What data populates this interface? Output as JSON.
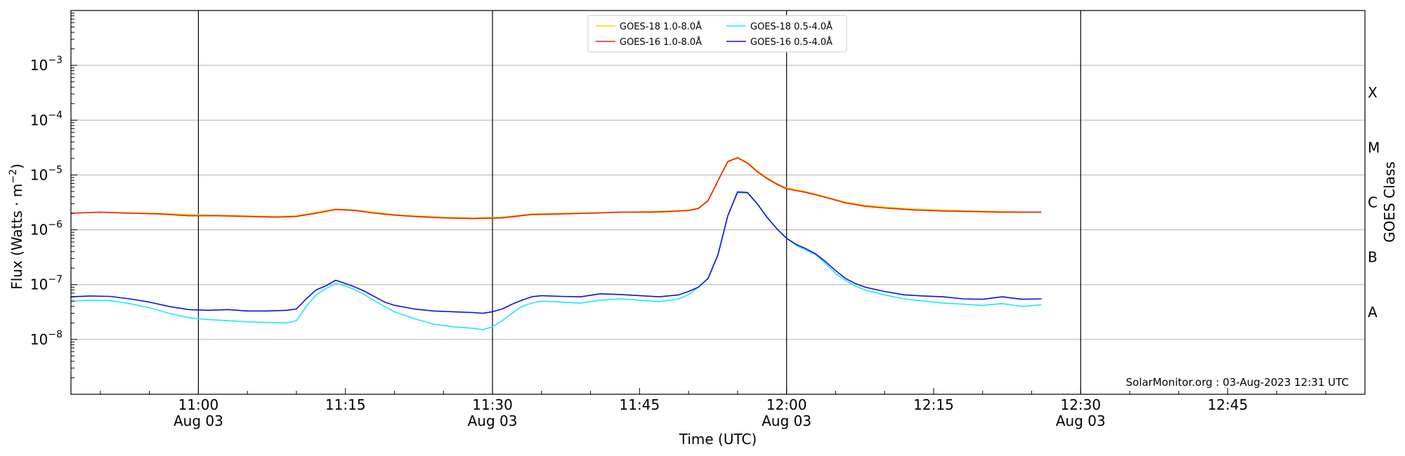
{
  "chart_data": {
    "type": "line",
    "xlabel": "Time (UTC)",
    "ylabel_main": "Flux (Watts · m",
    "ylabel_sup": "−2",
    "ylabel_close": ")",
    "right_ylabel": "GOES Class",
    "credit": "SolarMonitor.org : 03-Aug-2023 12:31 UTC",
    "x_range_minutes": [
      10.83,
      11.0
    ],
    "x_axis": {
      "min": "10:47",
      "max": "12:59",
      "ticks": [
        {
          "label": "11:00",
          "sub": "Aug 03",
          "t": "11:00",
          "vline": true
        },
        {
          "label": "11:15",
          "sub": "",
          "t": "11:15",
          "vline": false
        },
        {
          "label": "11:30",
          "sub": "Aug 03",
          "t": "11:30",
          "vline": true
        },
        {
          "label": "11:45",
          "sub": "",
          "t": "11:45",
          "vline": false
        },
        {
          "label": "12:00",
          "sub": "Aug 03",
          "t": "12:00",
          "vline": true
        },
        {
          "label": "12:15",
          "sub": "",
          "t": "12:15",
          "vline": false
        },
        {
          "label": "12:30",
          "sub": "Aug 03",
          "t": "12:30",
          "vline": true
        },
        {
          "label": "12:45",
          "sub": "",
          "t": "12:45",
          "vline": false
        }
      ]
    },
    "y_axis": {
      "scale": "log",
      "min": 1e-09,
      "max": 0.01,
      "ticks": [
        {
          "exp": -8,
          "base": "10",
          "sup": "−8"
        },
        {
          "exp": -7,
          "base": "10",
          "sup": "−7"
        },
        {
          "exp": -6,
          "base": "10",
          "sup": "−6"
        },
        {
          "exp": -5,
          "base": "10",
          "sup": "−5"
        },
        {
          "exp": -4,
          "base": "10",
          "sup": "−4"
        },
        {
          "exp": -3,
          "base": "10",
          "sup": "−3"
        }
      ],
      "grid": true
    },
    "goes_classes": [
      {
        "label": "A",
        "exp": -7.5
      },
      {
        "label": "B",
        "exp": -6.5
      },
      {
        "label": "C",
        "exp": -5.5
      },
      {
        "label": "M",
        "exp": -4.5
      },
      {
        "label": "X",
        "exp": -3.5
      }
    ],
    "legend": {
      "position": "top-center",
      "entries": [
        {
          "name": "GOES-18 1.0-8.0Å",
          "color": "#ffd700"
        },
        {
          "name": "GOES-16 1.0-8.0Å",
          "color": "#e8200c"
        },
        {
          "name": "GOES-18 0.5-4.0Å",
          "color": "#22e8ee"
        },
        {
          "name": "GOES-16 0.5-4.0Å",
          "color": "#1010d8"
        }
      ]
    },
    "series": [
      {
        "name": "GOES-18 1.0-8.0Å",
        "color": "#ffd700",
        "x": [
          "10:47",
          "10:50",
          "10:53",
          "10:56",
          "10:59",
          "11:02",
          "11:05",
          "11:08",
          "11:10",
          "11:12",
          "11:14",
          "11:16",
          "11:18",
          "11:20",
          "11:22",
          "11:25",
          "11:28",
          "11:31",
          "11:34",
          "11:37",
          "11:40",
          "11:43",
          "11:46",
          "11:48",
          "11:50",
          "11:51",
          "11:52",
          "11:53",
          "11:54",
          "11:55",
          "11:56",
          "11:57",
          "11:58",
          "11:59",
          "12:00",
          "12:02",
          "12:04",
          "12:06",
          "12:08",
          "12:10",
          "12:13",
          "12:16",
          "12:19",
          "12:22",
          "12:26"
        ],
        "y": [
          2e-06,
          2.1e-06,
          2.05e-06,
          2e-06,
          1.9e-06,
          1.85e-06,
          1.8e-06,
          1.75e-06,
          1.8e-06,
          2.1e-06,
          2.4e-06,
          2.3e-06,
          2.1e-06,
          1.9e-06,
          1.8e-06,
          1.7e-06,
          1.65e-06,
          1.7e-06,
          1.95e-06,
          2e-06,
          2.05e-06,
          2.1e-06,
          2.15e-06,
          2.2e-06,
          2.3e-06,
          2.5e-06,
          3.5e-06,
          8e-06,
          1.8e-05,
          2.1e-05,
          1.7e-05,
          1.2e-05,
          9e-06,
          7e-06,
          5.8e-06,
          5e-06,
          4e-06,
          3.2e-06,
          2.8e-06,
          2.6e-06,
          2.4e-06,
          2.3e-06,
          2.2e-06,
          2.15e-06,
          2.1e-06
        ]
      },
      {
        "name": "GOES-16 1.0-8.0Å",
        "color": "#e8200c",
        "x": [
          "10:47",
          "10:50",
          "10:53",
          "10:56",
          "10:59",
          "11:02",
          "11:05",
          "11:08",
          "11:10",
          "11:12",
          "11:14",
          "11:16",
          "11:18",
          "11:20",
          "11:22",
          "11:25",
          "11:28",
          "11:31",
          "11:34",
          "11:37",
          "11:40",
          "11:43",
          "11:46",
          "11:48",
          "11:50",
          "11:51",
          "11:52",
          "11:53",
          "11:54",
          "11:55",
          "11:56",
          "11:57",
          "11:58",
          "11:59",
          "12:00",
          "12:02",
          "12:04",
          "12:06",
          "12:08",
          "12:10",
          "12:13",
          "12:16",
          "12:19",
          "12:22",
          "12:26"
        ],
        "y": [
          2e-06,
          2.1e-06,
          2e-06,
          1.95e-06,
          1.8e-06,
          1.8e-06,
          1.75e-06,
          1.7e-06,
          1.75e-06,
          2e-06,
          2.35e-06,
          2.25e-06,
          2e-06,
          1.85e-06,
          1.75e-06,
          1.65e-06,
          1.6e-06,
          1.65e-06,
          1.9e-06,
          1.95e-06,
          2e-06,
          2.1e-06,
          2.1e-06,
          2.15e-06,
          2.25e-06,
          2.45e-06,
          3.4e-06,
          7.8e-06,
          1.75e-05,
          2.05e-05,
          1.65e-05,
          1.15e-05,
          8.6e-06,
          6.8e-06,
          5.6e-06,
          4.8e-06,
          3.9e-06,
          3.1e-06,
          2.7e-06,
          2.5e-06,
          2.3e-06,
          2.2e-06,
          2.15e-06,
          2.1e-06,
          2.1e-06
        ]
      },
      {
        "name": "GOES-18 0.5-4.0Å",
        "color": "#22e8ee",
        "x": [
          "10:47",
          "10:49",
          "10:51",
          "10:53",
          "10:55",
          "10:57",
          "10:59",
          "11:01",
          "11:03",
          "11:05",
          "11:07",
          "11:09",
          "11:10",
          "11:11",
          "11:12",
          "11:13",
          "11:14",
          "11:15",
          "11:16",
          "11:17",
          "11:18",
          "11:19",
          "11:20",
          "11:22",
          "11:24",
          "11:26",
          "11:28",
          "11:29",
          "11:30",
          "11:31",
          "11:32",
          "11:33",
          "11:34",
          "11:35",
          "11:37",
          "11:39",
          "11:41",
          "11:43",
          "11:45",
          "11:47",
          "11:49",
          "11:50",
          "11:51",
          "11:52",
          "11:53",
          "11:54",
          "11:55",
          "11:56",
          "11:57",
          "11:58",
          "11:59",
          "12:00",
          "12:01",
          "12:02",
          "12:03",
          "12:04",
          "12:05",
          "12:06",
          "12:07",
          "12:08",
          "12:10",
          "12:12",
          "12:14",
          "12:16",
          "12:18",
          "12:20",
          "12:22",
          "12:24",
          "12:26"
        ],
        "y": [
          5e-08,
          5.2e-08,
          5.1e-08,
          4.5e-08,
          3.8e-08,
          3e-08,
          2.5e-08,
          2.3e-08,
          2.2e-08,
          2.1e-08,
          2.05e-08,
          2e-08,
          2.2e-08,
          4e-08,
          6.5e-08,
          8.5e-08,
          1.05e-07,
          9.5e-08,
          8e-08,
          6.5e-08,
          5e-08,
          4e-08,
          3.2e-08,
          2.4e-08,
          1.9e-08,
          1.7e-08,
          1.6e-08,
          1.5e-08,
          1.7e-08,
          2.2e-08,
          3e-08,
          4e-08,
          4.6e-08,
          5e-08,
          4.8e-08,
          4.6e-08,
          5.2e-08,
          5.5e-08,
          5.2e-08,
          4.9e-08,
          5.5e-08,
          6.5e-08,
          9e-08,
          1.3e-07,
          3.5e-07,
          1.8e-06,
          4.8e-06,
          4.7e-06,
          3e-06,
          1.7e-06,
          1.05e-06,
          7e-07,
          5.2e-07,
          4.2e-07,
          3.5e-07,
          2.4e-07,
          1.6e-07,
          1.2e-07,
          9.5e-08,
          8e-08,
          6.5e-08,
          5.5e-08,
          5e-08,
          4.6e-08,
          4.4e-08,
          4.2e-08,
          4.5e-08,
          4e-08,
          4.3e-08
        ]
      },
      {
        "name": "GOES-16 0.5-4.0Å",
        "color": "#1010d8",
        "x": [
          "10:47",
          "10:49",
          "10:51",
          "10:53",
          "10:55",
          "10:57",
          "10:59",
          "11:01",
          "11:03",
          "11:05",
          "11:07",
          "11:09",
          "11:10",
          "11:11",
          "11:12",
          "11:13",
          "11:14",
          "11:15",
          "11:16",
          "11:17",
          "11:18",
          "11:19",
          "11:20",
          "11:22",
          "11:24",
          "11:26",
          "11:28",
          "11:29",
          "11:30",
          "11:31",
          "11:32",
          "11:33",
          "11:34",
          "11:35",
          "11:37",
          "11:39",
          "11:41",
          "11:43",
          "11:45",
          "11:47",
          "11:49",
          "11:50",
          "11:51",
          "11:52",
          "11:53",
          "11:54",
          "11:55",
          "11:56",
          "11:57",
          "11:58",
          "11:59",
          "12:00",
          "12:01",
          "12:02",
          "12:03",
          "12:04",
          "12:05",
          "12:06",
          "12:07",
          "12:08",
          "12:10",
          "12:12",
          "12:14",
          "12:16",
          "12:18",
          "12:20",
          "12:22",
          "12:24",
          "12:26"
        ],
        "y": [
          6e-08,
          6.2e-08,
          6.1e-08,
          5.5e-08,
          4.8e-08,
          4e-08,
          3.5e-08,
          3.4e-08,
          3.5e-08,
          3.3e-08,
          3.3e-08,
          3.4e-08,
          3.6e-08,
          5.5e-08,
          8e-08,
          9.5e-08,
          1.2e-07,
          1.05e-07,
          9e-08,
          7.5e-08,
          6e-08,
          4.8e-08,
          4.2e-08,
          3.6e-08,
          3.3e-08,
          3.2e-08,
          3.1e-08,
          3e-08,
          3.2e-08,
          3.6e-08,
          4.4e-08,
          5.2e-08,
          6e-08,
          6.3e-08,
          6.1e-08,
          6e-08,
          6.8e-08,
          6.6e-08,
          6.3e-08,
          6e-08,
          6.5e-08,
          7.5e-08,
          9e-08,
          1.3e-07,
          3.5e-07,
          1.8e-06,
          4.9e-06,
          4.8e-06,
          3e-06,
          1.7e-06,
          1.05e-06,
          7e-07,
          5.4e-07,
          4.5e-07,
          3.6e-07,
          2.6e-07,
          1.8e-07,
          1.3e-07,
          1.05e-07,
          9e-08,
          7.5e-08,
          6.5e-08,
          6.2e-08,
          6e-08,
          5.5e-08,
          5.4e-08,
          6e-08,
          5.4e-08,
          5.5e-08
        ]
      }
    ]
  }
}
